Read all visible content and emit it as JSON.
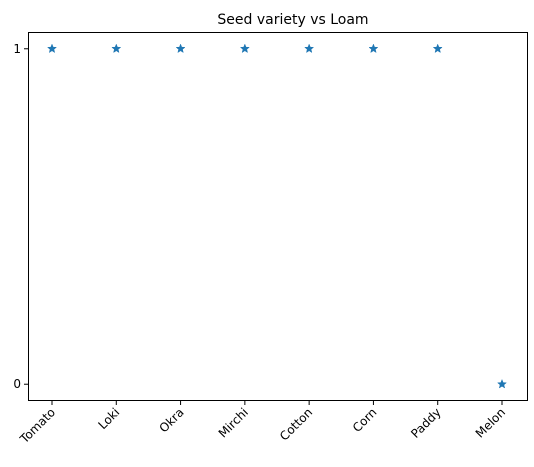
{
  "chart_data": {
    "type": "scatter",
    "title": "Seed variety vs Loam",
    "xlabel": "",
    "ylabel": "",
    "categories": [
      "Tomato",
      "Loki",
      "Okra",
      "Mirchi",
      "Cotton",
      "Corn",
      "Paddy",
      "Melon"
    ],
    "values": [
      1,
      1,
      1,
      1,
      1,
      1,
      1,
      0
    ],
    "yticks": [
      0,
      1
    ],
    "ylim": [
      -0.05,
      1.05
    ],
    "marker": "star",
    "color": "#1f77b4",
    "grid": false,
    "legend": "none"
  }
}
